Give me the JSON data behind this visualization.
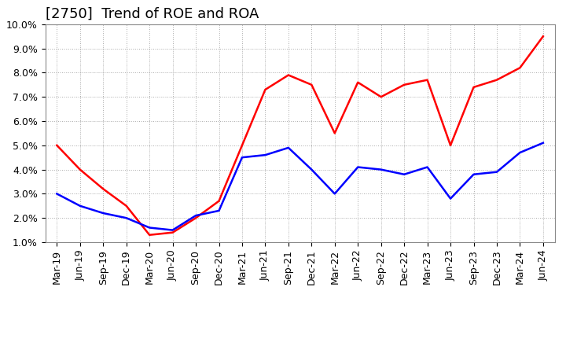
{
  "title": "[2750]  Trend of ROE and ROA",
  "ylim": [
    0.01,
    0.1
  ],
  "yticks": [
    0.01,
    0.02,
    0.03,
    0.04,
    0.05,
    0.06,
    0.07,
    0.08,
    0.09,
    0.1
  ],
  "ytick_labels": [
    "1.0%",
    "2.0%",
    "3.0%",
    "4.0%",
    "5.0%",
    "6.0%",
    "7.0%",
    "8.0%",
    "9.0%",
    "10.0%"
  ],
  "labels": [
    "Mar-19",
    "Jun-19",
    "Sep-19",
    "Dec-19",
    "Mar-20",
    "Jun-20",
    "Sep-20",
    "Dec-20",
    "Mar-21",
    "Jun-21",
    "Sep-21",
    "Dec-21",
    "Mar-22",
    "Jun-22",
    "Sep-22",
    "Dec-22",
    "Mar-23",
    "Jun-23",
    "Sep-23",
    "Dec-23",
    "Mar-24",
    "Jun-24"
  ],
  "roe": [
    0.05,
    0.04,
    0.032,
    0.025,
    0.013,
    0.014,
    0.02,
    0.027,
    0.05,
    0.073,
    0.079,
    0.075,
    0.055,
    0.076,
    0.07,
    0.075,
    0.077,
    0.05,
    0.074,
    0.077,
    0.082,
    0.095
  ],
  "roa": [
    0.03,
    0.025,
    0.022,
    0.02,
    0.016,
    0.015,
    0.021,
    0.023,
    0.045,
    0.046,
    0.049,
    0.04,
    0.03,
    0.041,
    0.04,
    0.038,
    0.041,
    0.028,
    0.038,
    0.039,
    0.047,
    0.051
  ],
  "roe_color": "#ff0000",
  "roa_color": "#0000ff",
  "line_width": 1.8,
  "background_color": "#ffffff",
  "grid_color": "#aaaaaa",
  "title_fontsize": 13,
  "tick_fontsize": 9,
  "legend_fontsize": 10
}
